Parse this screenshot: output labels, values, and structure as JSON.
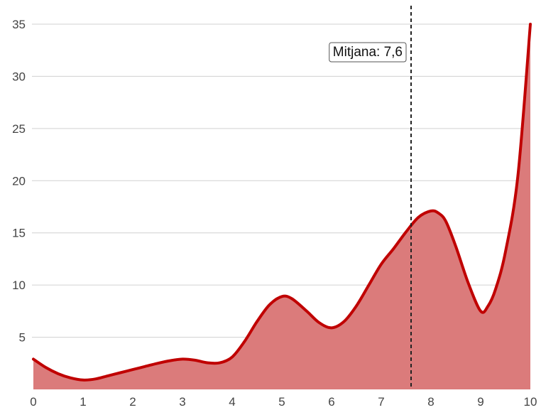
{
  "chart_data": {
    "type": "area",
    "title": "",
    "xlabel": "",
    "ylabel": "",
    "xlim": [
      0,
      10
    ],
    "ylim": [
      0,
      35
    ],
    "x_ticks": [
      "0",
      "1",
      "2",
      "3",
      "4",
      "5",
      "6",
      "7",
      "8",
      "9",
      "10"
    ],
    "y_ticks": [
      "5",
      "10",
      "15",
      "20",
      "25",
      "30",
      "35"
    ],
    "grid": "horizontal",
    "series": [
      {
        "points": [
          [
            0,
            2.9
          ],
          [
            0.25,
            2.1
          ],
          [
            0.5,
            1.5
          ],
          [
            0.75,
            1.1
          ],
          [
            1,
            0.9
          ],
          [
            1.25,
            1.0
          ],
          [
            1.5,
            1.3
          ],
          [
            1.75,
            1.6
          ],
          [
            2,
            1.9
          ],
          [
            2.25,
            2.2
          ],
          [
            2.5,
            2.5
          ],
          [
            2.75,
            2.75
          ],
          [
            3,
            2.9
          ],
          [
            3.25,
            2.8
          ],
          [
            3.5,
            2.55
          ],
          [
            3.75,
            2.55
          ],
          [
            4,
            3.1
          ],
          [
            4.25,
            4.6
          ],
          [
            4.5,
            6.5
          ],
          [
            4.75,
            8.1
          ],
          [
            5,
            8.9
          ],
          [
            5.2,
            8.7
          ],
          [
            5.5,
            7.5
          ],
          [
            5.75,
            6.4
          ],
          [
            6,
            5.9
          ],
          [
            6.25,
            6.5
          ],
          [
            6.5,
            8.0
          ],
          [
            6.75,
            10.0
          ],
          [
            7,
            12.0
          ],
          [
            7.25,
            13.5
          ],
          [
            7.5,
            15.1
          ],
          [
            7.75,
            16.5
          ],
          [
            8,
            17.1
          ],
          [
            8.15,
            16.9
          ],
          [
            8.3,
            16.1
          ],
          [
            8.5,
            13.7
          ],
          [
            8.75,
            10.2
          ],
          [
            9,
            7.5
          ],
          [
            9.15,
            8.0
          ],
          [
            9.3,
            9.6
          ],
          [
            9.5,
            13.2
          ],
          [
            9.75,
            20.5
          ],
          [
            10,
            35.0
          ]
        ],
        "line_color": "#c00000",
        "fill_color": "#db7b7b"
      }
    ],
    "annotations": [
      {
        "type": "vline",
        "x": 7.6,
        "style": "dashed",
        "color": "#222222",
        "label": "Mitjana: 7,6"
      }
    ]
  }
}
